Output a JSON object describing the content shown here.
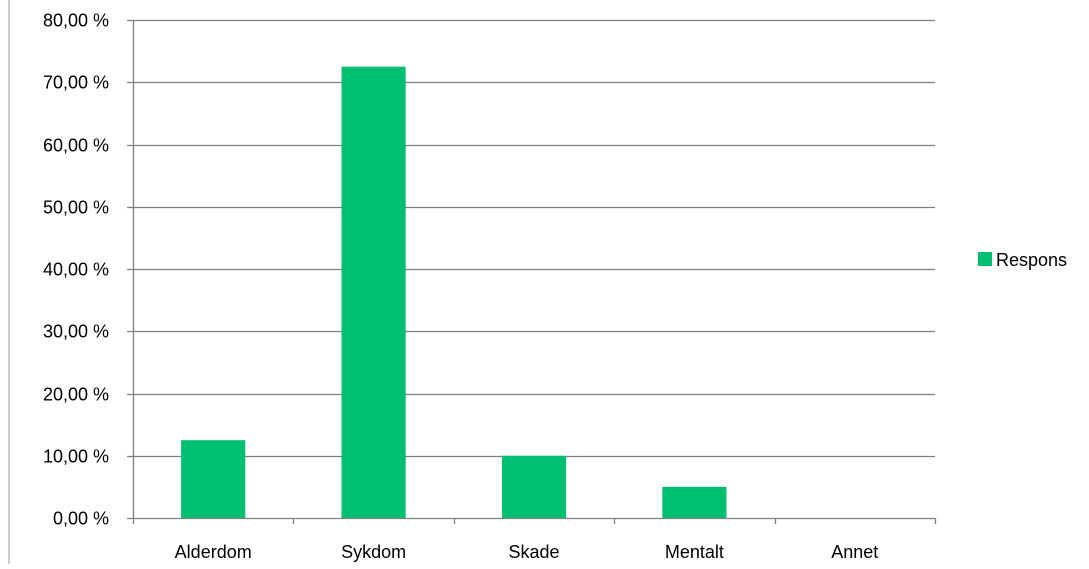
{
  "chart_data": {
    "type": "bar",
    "categories": [
      "Alderdom",
      "Sykdom",
      "Skade",
      "Mentalt",
      "Annet"
    ],
    "series": [
      {
        "name": "Respons",
        "values": [
          12.5,
          72.5,
          10.0,
          5.0,
          0.0
        ],
        "color": "#00BF6F"
      }
    ],
    "ylim": [
      0,
      80
    ],
    "yticks": [
      0,
      10,
      20,
      30,
      40,
      50,
      60,
      70,
      80
    ],
    "ytick_labels": [
      "0,00 %",
      "10,00 %",
      "20,00 %",
      "30,00 %",
      "40,00 %",
      "50,00 %",
      "60,00 %",
      "70,00 %",
      "80,00 %"
    ],
    "grid": true,
    "legend": "right",
    "title": "",
    "xlabel": "",
    "ylabel": ""
  },
  "colors": {
    "grid": "#808080",
    "axis": "#808080",
    "border": "#999999"
  }
}
